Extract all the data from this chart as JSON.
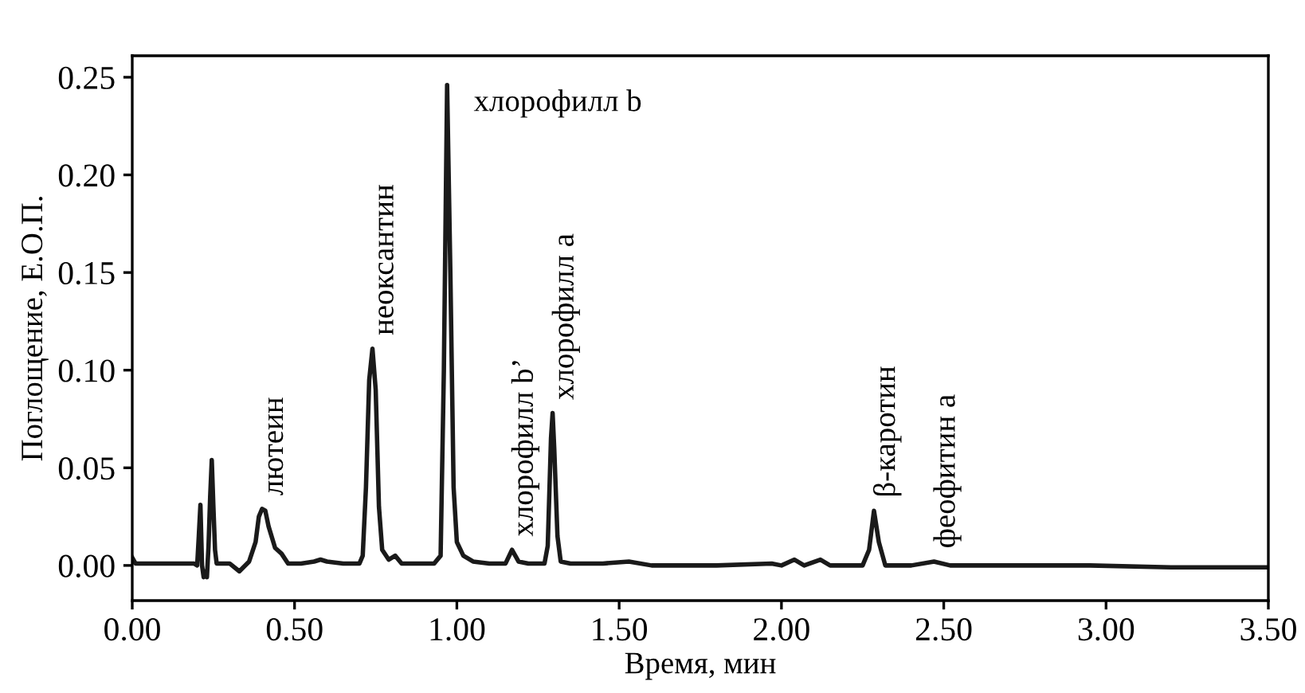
{
  "chart_data": {
    "type": "line",
    "xlabel": "Время, мин",
    "ylabel": "Поглощение, Е.О.П.",
    "xlim": [
      0,
      3.5
    ],
    "xticks": [
      {
        "value": 0,
        "label": "0.00"
      },
      {
        "value": 0.5,
        "label": "0.50"
      },
      {
        "value": 1,
        "label": "1.00"
      },
      {
        "value": 1.5,
        "label": "1.50"
      },
      {
        "value": 2,
        "label": "2.00"
      },
      {
        "value": 2.5,
        "label": "2.50"
      },
      {
        "value": 3,
        "label": "3.00"
      },
      {
        "value": 3.5,
        "label": "3.50"
      }
    ],
    "ylim": [
      -0.018,
      0.261
    ],
    "yticks": [
      {
        "value": 0,
        "label": "0.00"
      },
      {
        "value": 0.05,
        "label": "0.05"
      },
      {
        "value": 0.1,
        "label": "0.10"
      },
      {
        "value": 0.15,
        "label": "0.15"
      },
      {
        "value": 0.2,
        "label": "0.20"
      },
      {
        "value": 0.25,
        "label": "0.25"
      }
    ],
    "grid": false,
    "marker": "none",
    "line_style": "solid",
    "series": [
      {
        "color": "#1a1a1a",
        "x": [
          0,
          0.01,
          0.05,
          0.1,
          0.15,
          0.19,
          0.2,
          0.205,
          0.21,
          0.215,
          0.22,
          0.225,
          0.23,
          0.235,
          0.24,
          0.245,
          0.25,
          0.255,
          0.26,
          0.27,
          0.3,
          0.33,
          0.36,
          0.38,
          0.39,
          0.4,
          0.41,
          0.42,
          0.44,
          0.46,
          0.48,
          0.52,
          0.56,
          0.58,
          0.6,
          0.65,
          0.7,
          0.71,
          0.72,
          0.73,
          0.74,
          0.75,
          0.76,
          0.77,
          0.79,
          0.81,
          0.83,
          0.87,
          0.93,
          0.95,
          0.96,
          0.97,
          0.98,
          0.99,
          1.0,
          1.02,
          1.05,
          1.1,
          1.15,
          1.17,
          1.19,
          1.22,
          1.27,
          1.28,
          1.29,
          1.295,
          1.3,
          1.31,
          1.32,
          1.35,
          1.45,
          1.53,
          1.6,
          1.8,
          1.97,
          2.0,
          2.04,
          2.07,
          2.12,
          2.15,
          2.25,
          2.27,
          2.285,
          2.3,
          2.32,
          2.4,
          2.47,
          2.52,
          2.7,
          2.95,
          3.2,
          3.5
        ],
        "values": [
          0.004,
          0.001,
          0.001,
          0.001,
          0.001,
          0.001,
          0.0,
          0.015,
          0.031,
          0.0,
          -0.006,
          -0.003,
          -0.006,
          0.01,
          0.035,
          0.054,
          0.03,
          0.008,
          0.001,
          0.001,
          0.001,
          -0.003,
          0.002,
          0.012,
          0.025,
          0.029,
          0.028,
          0.02,
          0.009,
          0.006,
          0.001,
          0.001,
          0.002,
          0.003,
          0.002,
          0.001,
          0.001,
          0.005,
          0.04,
          0.095,
          0.111,
          0.09,
          0.03,
          0.008,
          0.003,
          0.005,
          0.001,
          0.001,
          0.001,
          0.005,
          0.1,
          0.246,
          0.15,
          0.04,
          0.012,
          0.005,
          0.002,
          0.001,
          0.001,
          0.008,
          0.002,
          0.001,
          0.001,
          0.01,
          0.065,
          0.078,
          0.06,
          0.015,
          0.002,
          0.001,
          0.001,
          0.002,
          0.0,
          0.0,
          0.001,
          0.0,
          0.003,
          0.0,
          0.003,
          0.0,
          0.0,
          0.008,
          0.028,
          0.012,
          0.0,
          0.0,
          0.002,
          0.0,
          0.0,
          0.0,
          -0.001,
          -0.001
        ]
      }
    ],
    "annotations": [
      {
        "text": "лютеин",
        "x": 0.4,
        "y": 0.029
      },
      {
        "text": "неоксантин",
        "x": 0.74,
        "y": 0.111
      },
      {
        "text": "хлорофилл b",
        "x": 0.97,
        "y": 0.246
      },
      {
        "text": "хлорофилл b’",
        "x": 1.17,
        "y": 0.008
      },
      {
        "text": "хлорофилл a",
        "x": 1.295,
        "y": 0.078
      },
      {
        "text": "β-каротин",
        "x": 2.285,
        "y": 0.028
      },
      {
        "text": "феофитин a",
        "x": 2.47,
        "y": 0.002
      }
    ]
  }
}
